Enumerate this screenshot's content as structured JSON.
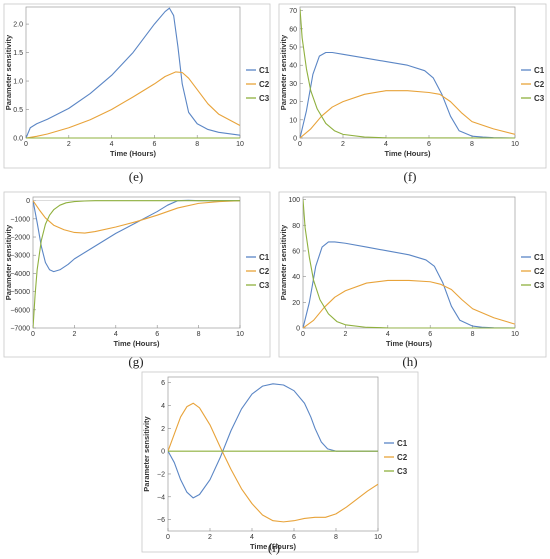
{
  "colors": {
    "C1": "#5b86c5",
    "C2": "#e8a33a",
    "C3": "#8fb03e"
  },
  "chart_data": [
    {
      "type": "line",
      "caption": "(e)",
      "xlabel": "Time (Hours)",
      "ylabel": "Parameter sensitivity",
      "xlim": [
        0,
        10
      ],
      "ylim": [
        0,
        2.3
      ],
      "xticks": [
        "0",
        "2",
        "4",
        "6",
        "8",
        "10"
      ],
      "yticks": [
        "0.0",
        "0.5",
        "1.0",
        "1.5",
        "2.0"
      ],
      "legend": [
        "C1",
        "C2",
        "C3"
      ],
      "series": [
        {
          "name": "C1",
          "x": [
            0,
            0.2,
            0.5,
            1,
            2,
            3,
            4,
            5,
            5.5,
            6,
            6.5,
            6.7,
            6.9,
            7.1,
            7.3,
            7.6,
            8,
            8.5,
            9,
            10
          ],
          "y": [
            0,
            0.18,
            0.25,
            0.33,
            0.52,
            0.78,
            1.1,
            1.5,
            1.75,
            2.0,
            2.22,
            2.28,
            2.15,
            1.6,
            0.95,
            0.45,
            0.25,
            0.15,
            0.1,
            0.05
          ]
        },
        {
          "name": "C2",
          "x": [
            0,
            0.5,
            1,
            2,
            3,
            4,
            5,
            6,
            6.5,
            7,
            7.3,
            7.6,
            8,
            8.5,
            9,
            10
          ],
          "y": [
            0,
            0.03,
            0.07,
            0.18,
            0.32,
            0.5,
            0.72,
            0.95,
            1.08,
            1.16,
            1.15,
            1.05,
            0.85,
            0.6,
            0.42,
            0.22
          ]
        },
        {
          "name": "C3",
          "x": [
            0,
            10
          ],
          "y": [
            0,
            0
          ]
        }
      ]
    },
    {
      "type": "line",
      "caption": "(f)",
      "xlabel": "Time (Hours)",
      "ylabel": "Parameter sensitivity",
      "xlim": [
        0,
        10
      ],
      "ylim": [
        0,
        72
      ],
      "xticks": [
        "0",
        "2",
        "4",
        "6",
        "8",
        "10"
      ],
      "yticks": [
        "0",
        "10",
        "20",
        "30",
        "40",
        "50",
        "60",
        "70"
      ],
      "legend": [
        "C1",
        "C2",
        "C3"
      ],
      "series": [
        {
          "name": "C1",
          "x": [
            0,
            0.3,
            0.6,
            0.9,
            1.2,
            1.5,
            2,
            3,
            4,
            5,
            5.8,
            6.2,
            6.6,
            7,
            7.4,
            8,
            8.5,
            9,
            10
          ],
          "y": [
            0,
            15,
            35,
            45,
            47,
            47,
            46,
            44,
            42,
            40,
            37,
            33,
            24,
            12,
            4,
            1,
            0.5,
            0.2,
            0
          ]
        },
        {
          "name": "C2",
          "x": [
            0,
            0.5,
            1,
            1.5,
            2,
            3,
            4,
            5,
            6,
            6.5,
            7,
            7.5,
            8,
            9,
            10
          ],
          "y": [
            0,
            5,
            12,
            17,
            20,
            24,
            26,
            26,
            25,
            24,
            20,
            14,
            9,
            5,
            2
          ]
        },
        {
          "name": "C3",
          "x": [
            0,
            0.1,
            0.3,
            0.5,
            0.8,
            1.2,
            1.6,
            2,
            3,
            4,
            10
          ],
          "y": [
            71,
            55,
            38,
            26,
            16,
            8,
            4,
            2,
            0.5,
            0.1,
            0
          ]
        }
      ]
    },
    {
      "type": "line",
      "caption": "(g)",
      "xlabel": "Time (Hours)",
      "ylabel": "Parameter sensitivity",
      "xlim": [
        0,
        10
      ],
      "ylim": [
        -7000,
        200
      ],
      "xticks": [
        "0",
        "2",
        "4",
        "6",
        "8",
        "10"
      ],
      "yticks": [
        "0",
        "−1000",
        "−2000",
        "−3000",
        "−4000",
        "−5000",
        "−6000",
        "−7000"
      ],
      "legend": [
        "C1",
        "C2",
        "C3"
      ],
      "series": [
        {
          "name": "C1",
          "x": [
            0,
            0.2,
            0.4,
            0.6,
            0.8,
            1,
            1.3,
            1.7,
            2,
            3,
            4,
            5,
            6,
            6.5,
            7,
            7.5,
            8,
            9,
            10
          ],
          "y": [
            0,
            -1200,
            -2500,
            -3400,
            -3800,
            -3900,
            -3800,
            -3500,
            -3200,
            -2500,
            -1800,
            -1200,
            -600,
            -250,
            0,
            20,
            0,
            0,
            0
          ]
        },
        {
          "name": "C2",
          "x": [
            0,
            0.3,
            0.6,
            1,
            1.5,
            2,
            2.5,
            3,
            4,
            5,
            6,
            7,
            8,
            9,
            10
          ],
          "y": [
            0,
            -500,
            -950,
            -1350,
            -1600,
            -1750,
            -1780,
            -1700,
            -1450,
            -1150,
            -800,
            -400,
            -150,
            -50,
            0
          ]
        },
        {
          "name": "C3",
          "x": [
            0,
            0.1,
            0.2,
            0.4,
            0.6,
            0.8,
            1,
            1.3,
            1.6,
            2,
            2.5,
            3,
            4,
            10
          ],
          "y": [
            -7000,
            -5200,
            -3800,
            -2200,
            -1300,
            -800,
            -500,
            -250,
            -120,
            -50,
            -20,
            -5,
            0,
            0
          ]
        }
      ]
    },
    {
      "type": "line",
      "caption": "(h)",
      "xlabel": "Time (Hours)",
      "ylabel": "Parameter sensitivity",
      "xlim": [
        0,
        10
      ],
      "ylim": [
        0,
        102
      ],
      "xticks": [
        "0",
        "2",
        "4",
        "6",
        "8",
        "10"
      ],
      "yticks": [
        "0",
        "20",
        "40",
        "60",
        "80",
        "100"
      ],
      "legend": [
        "C1",
        "C2",
        "C3"
      ],
      "series": [
        {
          "name": "C1",
          "x": [
            0,
            0.3,
            0.6,
            0.9,
            1.2,
            1.5,
            2,
            3,
            4,
            5,
            5.8,
            6.2,
            6.6,
            7,
            7.4,
            8,
            8.5,
            9,
            10
          ],
          "y": [
            0,
            20,
            48,
            63,
            67,
            67,
            66,
            63,
            60,
            57,
            53,
            48,
            35,
            17,
            6,
            1.5,
            0.5,
            0.2,
            0
          ]
        },
        {
          "name": "C2",
          "x": [
            0,
            0.5,
            1,
            1.5,
            2,
            3,
            4,
            5,
            6,
            6.5,
            7,
            7.5,
            8,
            9,
            10
          ],
          "y": [
            0,
            6,
            16,
            24,
            29,
            35,
            37,
            37,
            36,
            34,
            30,
            22,
            15,
            8,
            3
          ]
        },
        {
          "name": "C3",
          "x": [
            0,
            0.1,
            0.3,
            0.5,
            0.8,
            1.2,
            1.6,
            2,
            3,
            4,
            10
          ],
          "y": [
            100,
            78,
            55,
            37,
            22,
            11,
            5,
            2.5,
            0.5,
            0.1,
            0
          ]
        }
      ]
    },
    {
      "type": "line",
      "caption": "(i)",
      "xlabel": "Time (Hours)",
      "ylabel": "Parameter sensitivity",
      "xlim": [
        0,
        10
      ],
      "ylim": [
        -7,
        6.5
      ],
      "xticks": [
        "0",
        "2",
        "4",
        "6",
        "8",
        "10"
      ],
      "yticks": [
        "6",
        "4",
        "2",
        "0",
        "−2",
        "−4",
        "−6"
      ],
      "legend": [
        "C1",
        "C2",
        "C3"
      ],
      "series": [
        {
          "name": "C1",
          "x": [
            0,
            0.3,
            0.6,
            0.9,
            1.2,
            1.5,
            2,
            2.5,
            3,
            3.5,
            4,
            4.5,
            5,
            5.5,
            6,
            6.5,
            6.8,
            7,
            7.3,
            7.6,
            8,
            9,
            10
          ],
          "y": [
            0,
            -1,
            -2.5,
            -3.6,
            -4.1,
            -3.8,
            -2.5,
            -0.5,
            1.8,
            3.7,
            5,
            5.7,
            5.9,
            5.8,
            5.3,
            4.2,
            3,
            2,
            0.8,
            0.2,
            0,
            0,
            0
          ]
        },
        {
          "name": "C2",
          "x": [
            0,
            0.3,
            0.6,
            0.9,
            1.2,
            1.5,
            2,
            2.5,
            3,
            3.5,
            4,
            4.5,
            5,
            5.5,
            6,
            6.5,
            7,
            7.5,
            8,
            8.5,
            9,
            9.5,
            10
          ],
          "y": [
            0,
            1.5,
            3,
            3.9,
            4.2,
            3.8,
            2.3,
            0.3,
            -1.6,
            -3.3,
            -4.6,
            -5.6,
            -6.1,
            -6.2,
            -6.1,
            -5.9,
            -5.8,
            -5.8,
            -5.5,
            -4.9,
            -4.2,
            -3.5,
            -2.9
          ]
        },
        {
          "name": "C3",
          "x": [
            0,
            10
          ],
          "y": [
            0,
            0
          ]
        }
      ]
    }
  ]
}
